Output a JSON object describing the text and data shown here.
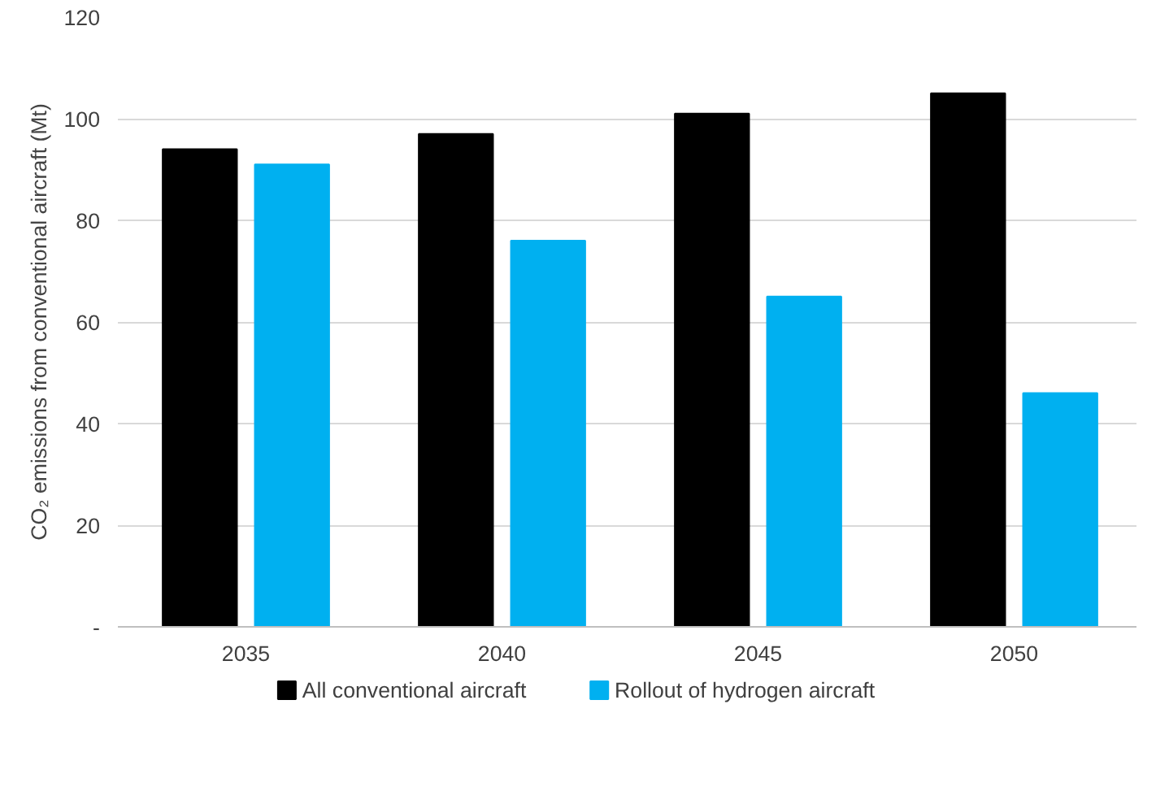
{
  "chart_data": {
    "type": "bar",
    "ylabel": "CO₂ emissions from conventional aircraft (Mt)",
    "categories": [
      "2035",
      "2040",
      "2045",
      "2050"
    ],
    "series": [
      {
        "name": "All conventional aircraft",
        "color": "#000000",
        "values": [
          94,
          97,
          101,
          105
        ]
      },
      {
        "name": "Rollout of hydrogen aircraft",
        "color": "#00b0f0",
        "values": [
          91,
          76,
          65,
          46
        ]
      }
    ],
    "ylim": [
      0,
      120
    ],
    "yticks": [
      {
        "value": 0,
        "label": "-"
      },
      20,
      40,
      60,
      80,
      100,
      120
    ],
    "grid": "y",
    "legend": "bottom"
  }
}
